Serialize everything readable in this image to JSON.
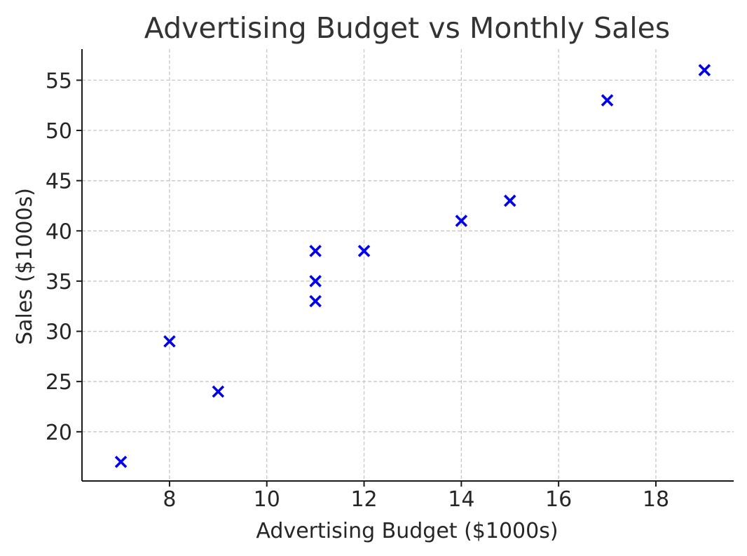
{
  "chart_data": {
    "type": "scatter",
    "title": "Advertising Budget vs Monthly Sales",
    "xlabel": "Advertising Budget ($1000s)",
    "ylabel": "Sales ($1000s)",
    "xlim": [
      6.2,
      19.6
    ],
    "ylim": [
      15.1,
      58.1
    ],
    "xticks": [
      8,
      10,
      12,
      14,
      16,
      18
    ],
    "yticks": [
      20,
      25,
      30,
      35,
      40,
      45,
      50,
      55
    ],
    "grid": true,
    "marker": "x",
    "color": "#0000ee",
    "series": [
      {
        "x": [
          7,
          8,
          9,
          11,
          11,
          11,
          12,
          14,
          15,
          17,
          19
        ],
        "y": [
          17,
          29,
          24,
          33,
          35,
          38,
          38,
          41,
          43,
          53,
          56
        ]
      }
    ]
  }
}
